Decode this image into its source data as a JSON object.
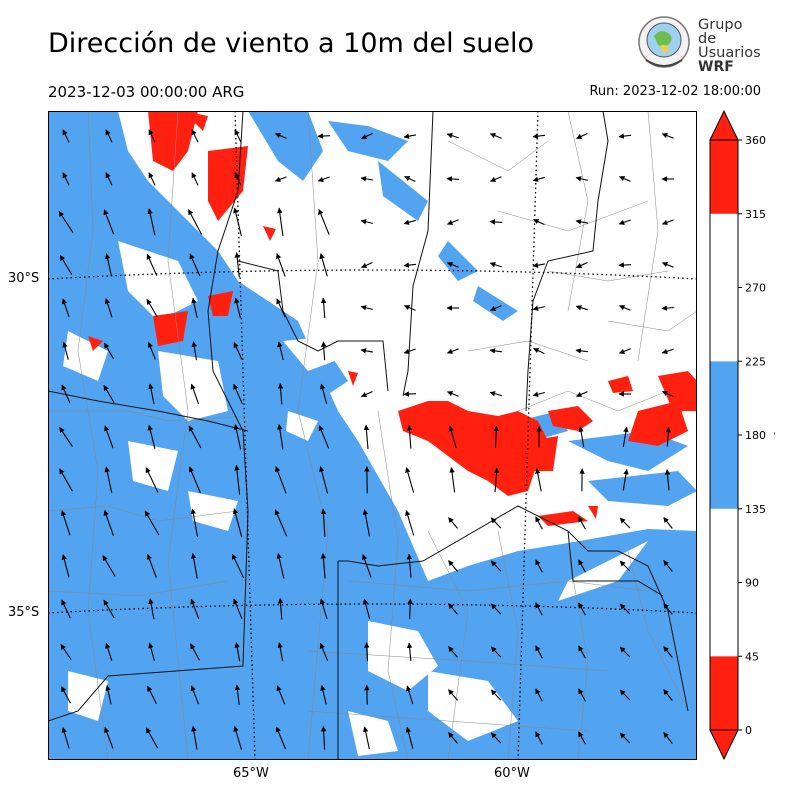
{
  "header": {
    "title": "Dirección de viento a 10m del suelo",
    "valid_time": "2023-12-03 00:00:00 ARG",
    "run": "Run: 2023-12-02 18:00:00"
  },
  "logo": {
    "line1": "Grupo de",
    "line2": "Usuarios",
    "line3": "WRF"
  },
  "map": {
    "lat_labels": [
      "30°S",
      "35°S"
    ],
    "lon_labels": [
      "65°W",
      "60°W"
    ],
    "colors": {
      "red": "#ff2010",
      "blue": "#52a3f0",
      "white": "#ffffff"
    }
  },
  "colorbar": {
    "ticks": [
      "360",
      "315",
      "270",
      "225",
      "180",
      "135",
      "90",
      "45",
      "0"
    ],
    "unit": "°",
    "bands": [
      {
        "from": 0,
        "to": 45,
        "color": "#ff2010"
      },
      {
        "from": 45,
        "to": 135,
        "color": "#ffffff"
      },
      {
        "from": 135,
        "to": 225,
        "color": "#52a3f0"
      },
      {
        "from": 225,
        "to": 315,
        "color": "#ffffff"
      },
      {
        "from": 315,
        "to": 360,
        "color": "#ff2010"
      }
    ]
  }
}
